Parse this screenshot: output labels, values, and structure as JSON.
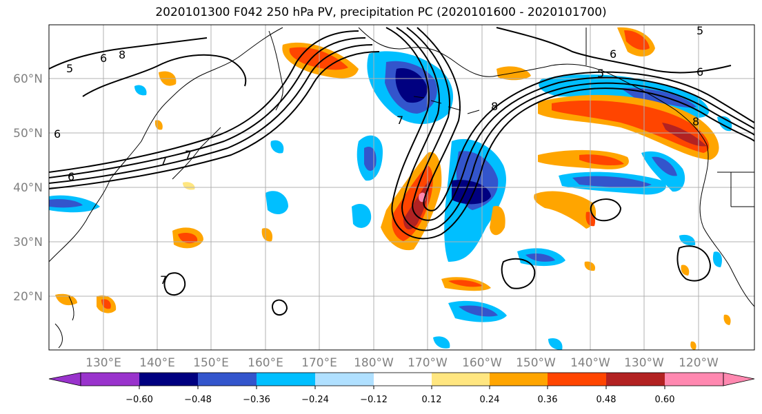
{
  "title": "2020101300 F042 250 hPa PV, precipitation PC (2020101600 - 2020101700)",
  "lat_labels": [
    "60°N",
    "50°N",
    "40°N",
    "30°N",
    "20°N"
  ],
  "lon_labels": [
    "130°E",
    "140°E",
    "150°E",
    "160°E",
    "170°E",
    "180°W",
    "170°W",
    "160°W",
    "150°W",
    "140°W",
    "130°W",
    "120°W"
  ],
  "colorbar": {
    "ticks": [
      "−0.60",
      "−0.48",
      "−0.36",
      "−0.24",
      "−0.12",
      "0.12",
      "0.24",
      "0.36",
      "0.48",
      "0.60"
    ],
    "colors": [
      "#9933cc",
      "#000080",
      "#3355cc",
      "#00bfff",
      "#b0e0ff",
      "#ffffff",
      "#ffe680",
      "#ffa500",
      "#ff4500",
      "#b22222",
      "#ff88b0"
    ]
  },
  "contour_labels": [
    "5",
    "6",
    "8",
    "6",
    "7",
    "6",
    "7",
    "8",
    "6",
    "5",
    "8",
    "6",
    "5",
    "7",
    "7"
  ],
  "colors": {
    "contour": "#000000",
    "coast": "#000000",
    "grid": "#b0b0b0"
  }
}
